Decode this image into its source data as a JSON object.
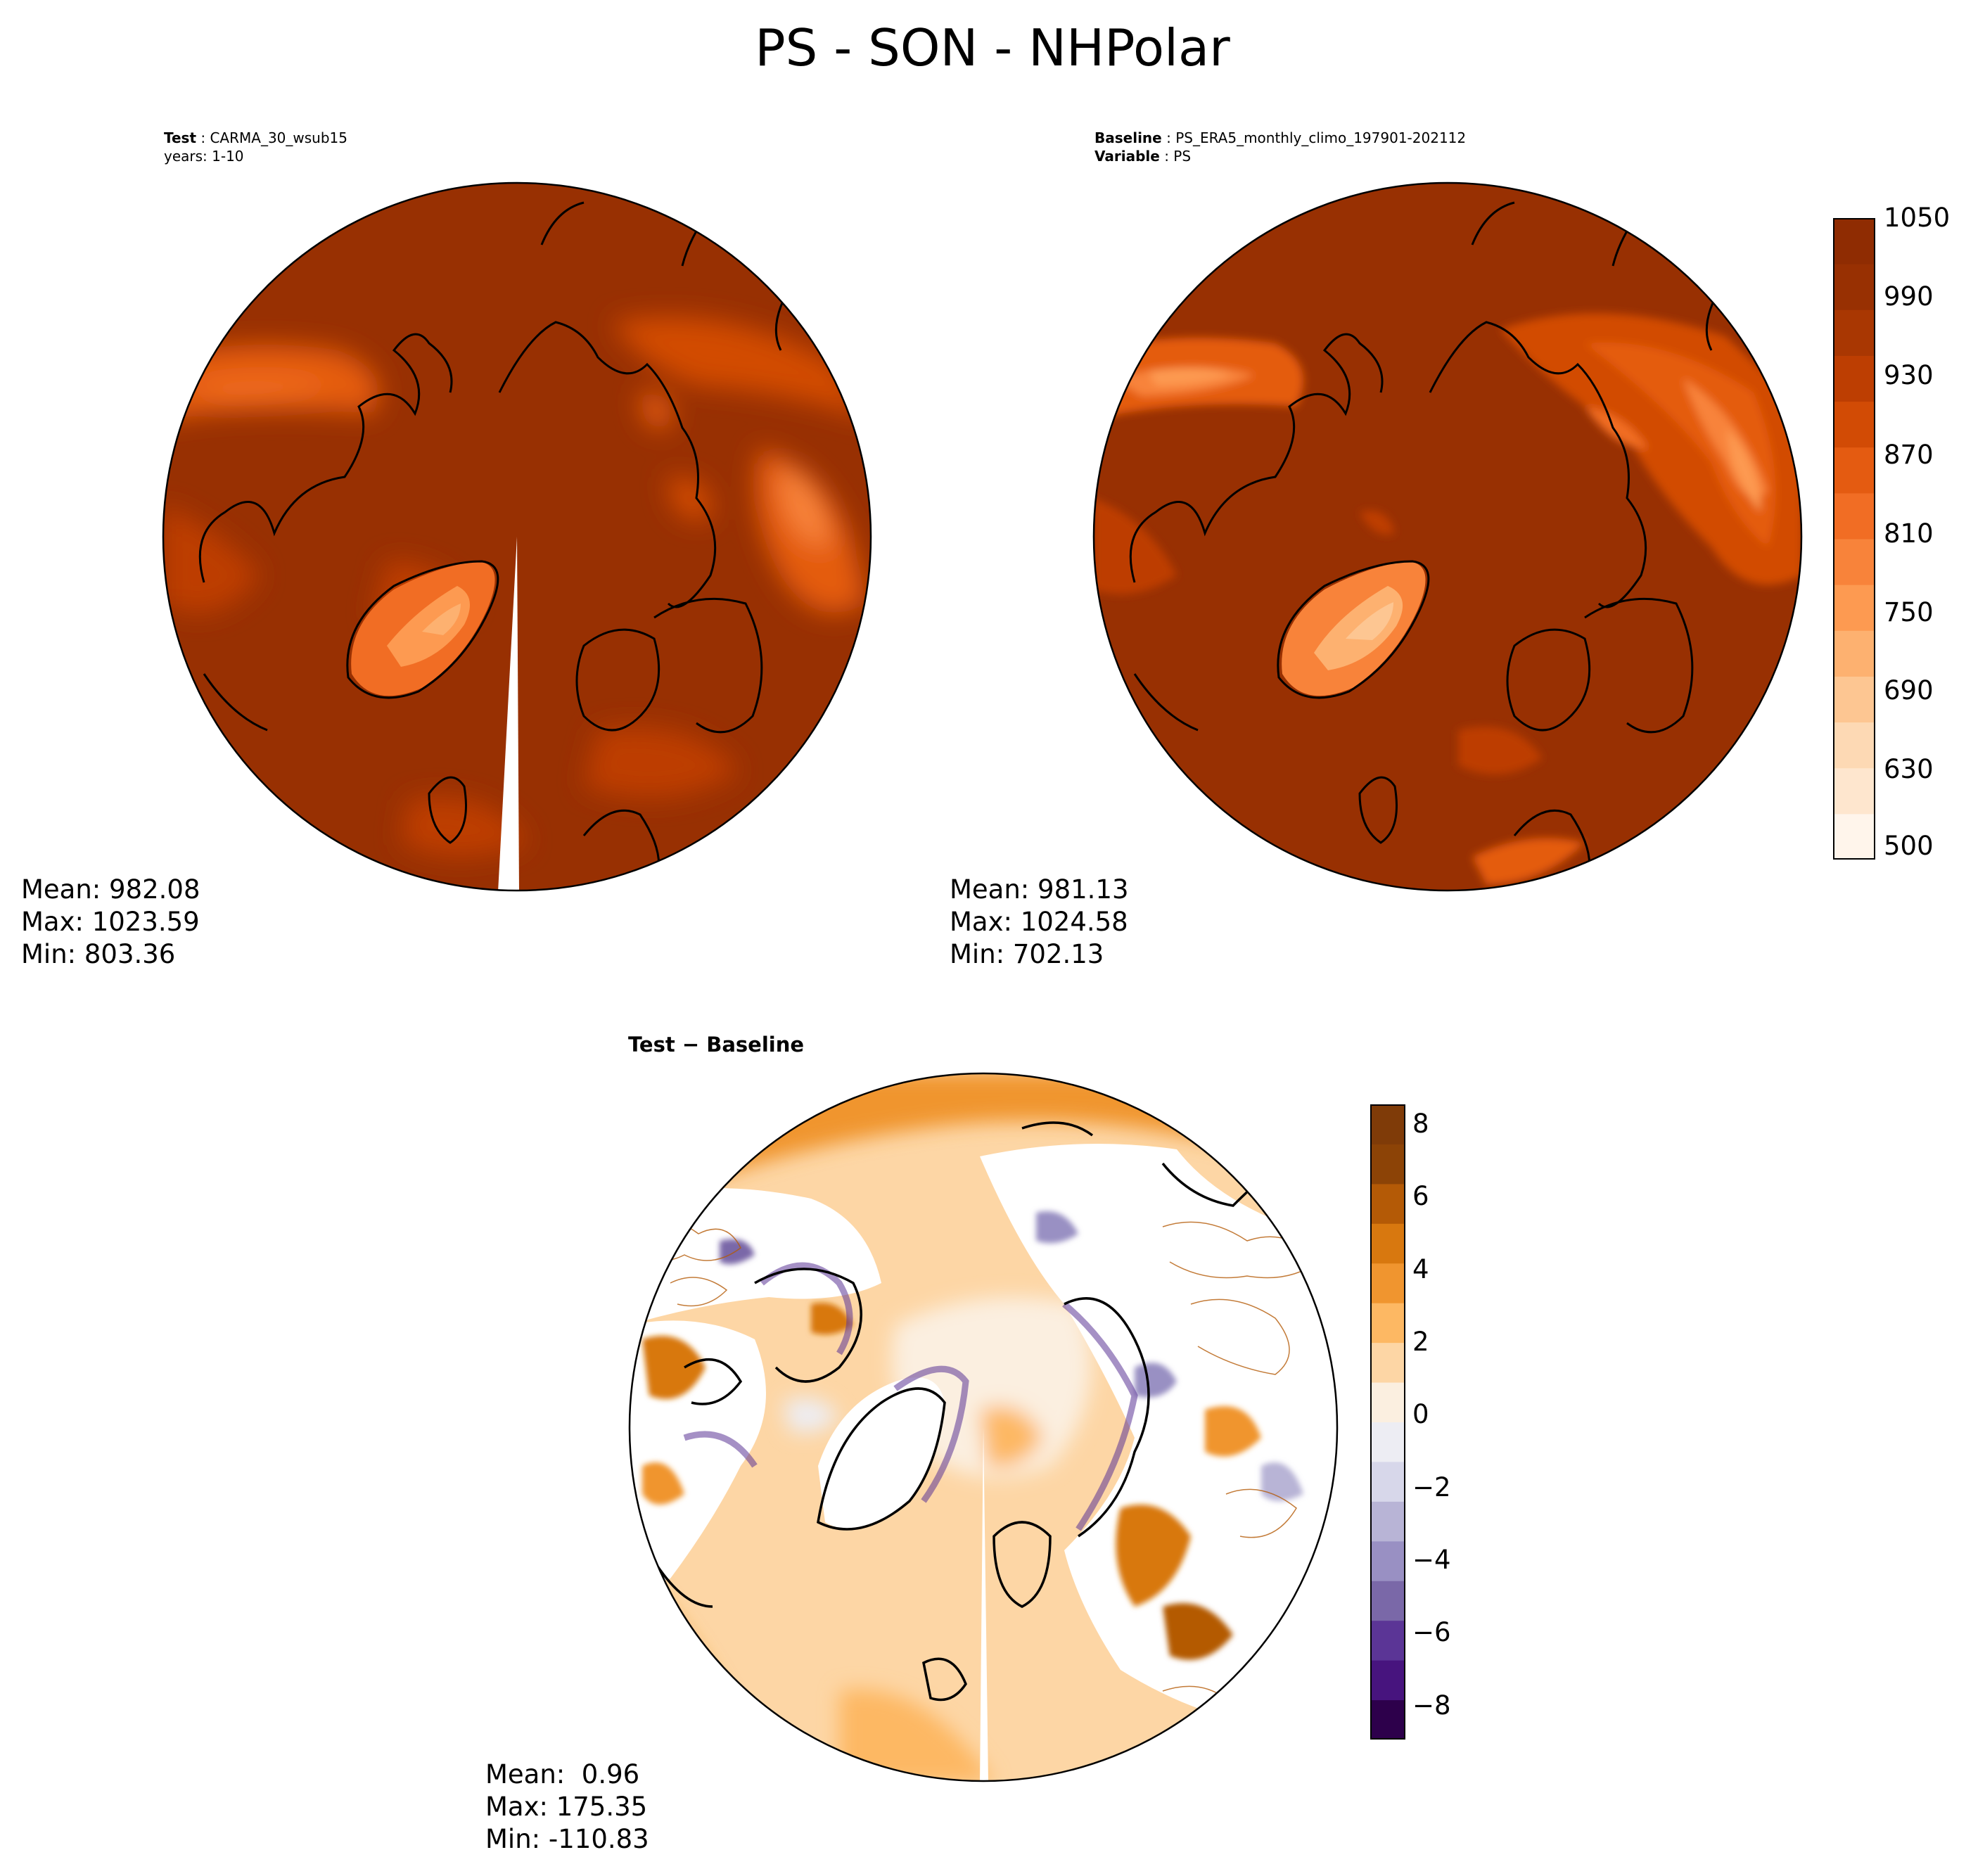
{
  "figure": {
    "title": "PS - SON - NHPolar"
  },
  "panels": {
    "test": {
      "label_key": "Test",
      "label_value": "CARMA_30_wsub15",
      "line2": "years: 1-10",
      "stats": {
        "mean": "Mean: 982.08",
        "max": "Max: 1023.59",
        "min": "Min: 803.36"
      }
    },
    "baseline": {
      "label_key": "Baseline",
      "label_value": "PS_ERA5_monthly_climo_197901-202112",
      "line2_key": "Variable",
      "line2_value": "PS",
      "stats": {
        "mean": "Mean: 981.13",
        "max": "Max: 1024.58",
        "min": "Min: 702.13"
      }
    },
    "diff": {
      "title_a": "Test",
      "title_op": " − ",
      "title_b": "Baseline",
      "stats": {
        "mean": "Mean:  0.96",
        "max": "Max: 175.35",
        "min": "Min: -110.83"
      }
    }
  },
  "colorbars": {
    "main": {
      "ticks": [
        "1050",
        "990",
        "930",
        "870",
        "810",
        "750",
        "690",
        "630",
        "500"
      ],
      "colors": [
        "#fff5eb",
        "#fee6ce",
        "#fdd9b4",
        "#fdc692",
        "#fdb170",
        "#fd9a51",
        "#f8833a",
        "#f16d24",
        "#e45b11",
        "#d24b05",
        "#bd3e02",
        "#a93702",
        "#983002",
        "#8f2c02"
      ]
    },
    "diff": {
      "ticks": [
        "8",
        "6",
        "4",
        "2",
        "0",
        "−2",
        "−4",
        "−6",
        "−8"
      ],
      "colors": [
        "#2d004b",
        "#47147e",
        "#5b3596",
        "#7a68a8",
        "#9990c3",
        "#b8b4d6",
        "#d7d7ea",
        "#ededf3",
        "#fbefe0",
        "#fdd6a5",
        "#fdb863",
        "#f0952f",
        "#d8780f",
        "#b45a06",
        "#8c4306",
        "#7f3b08"
      ]
    }
  }
}
